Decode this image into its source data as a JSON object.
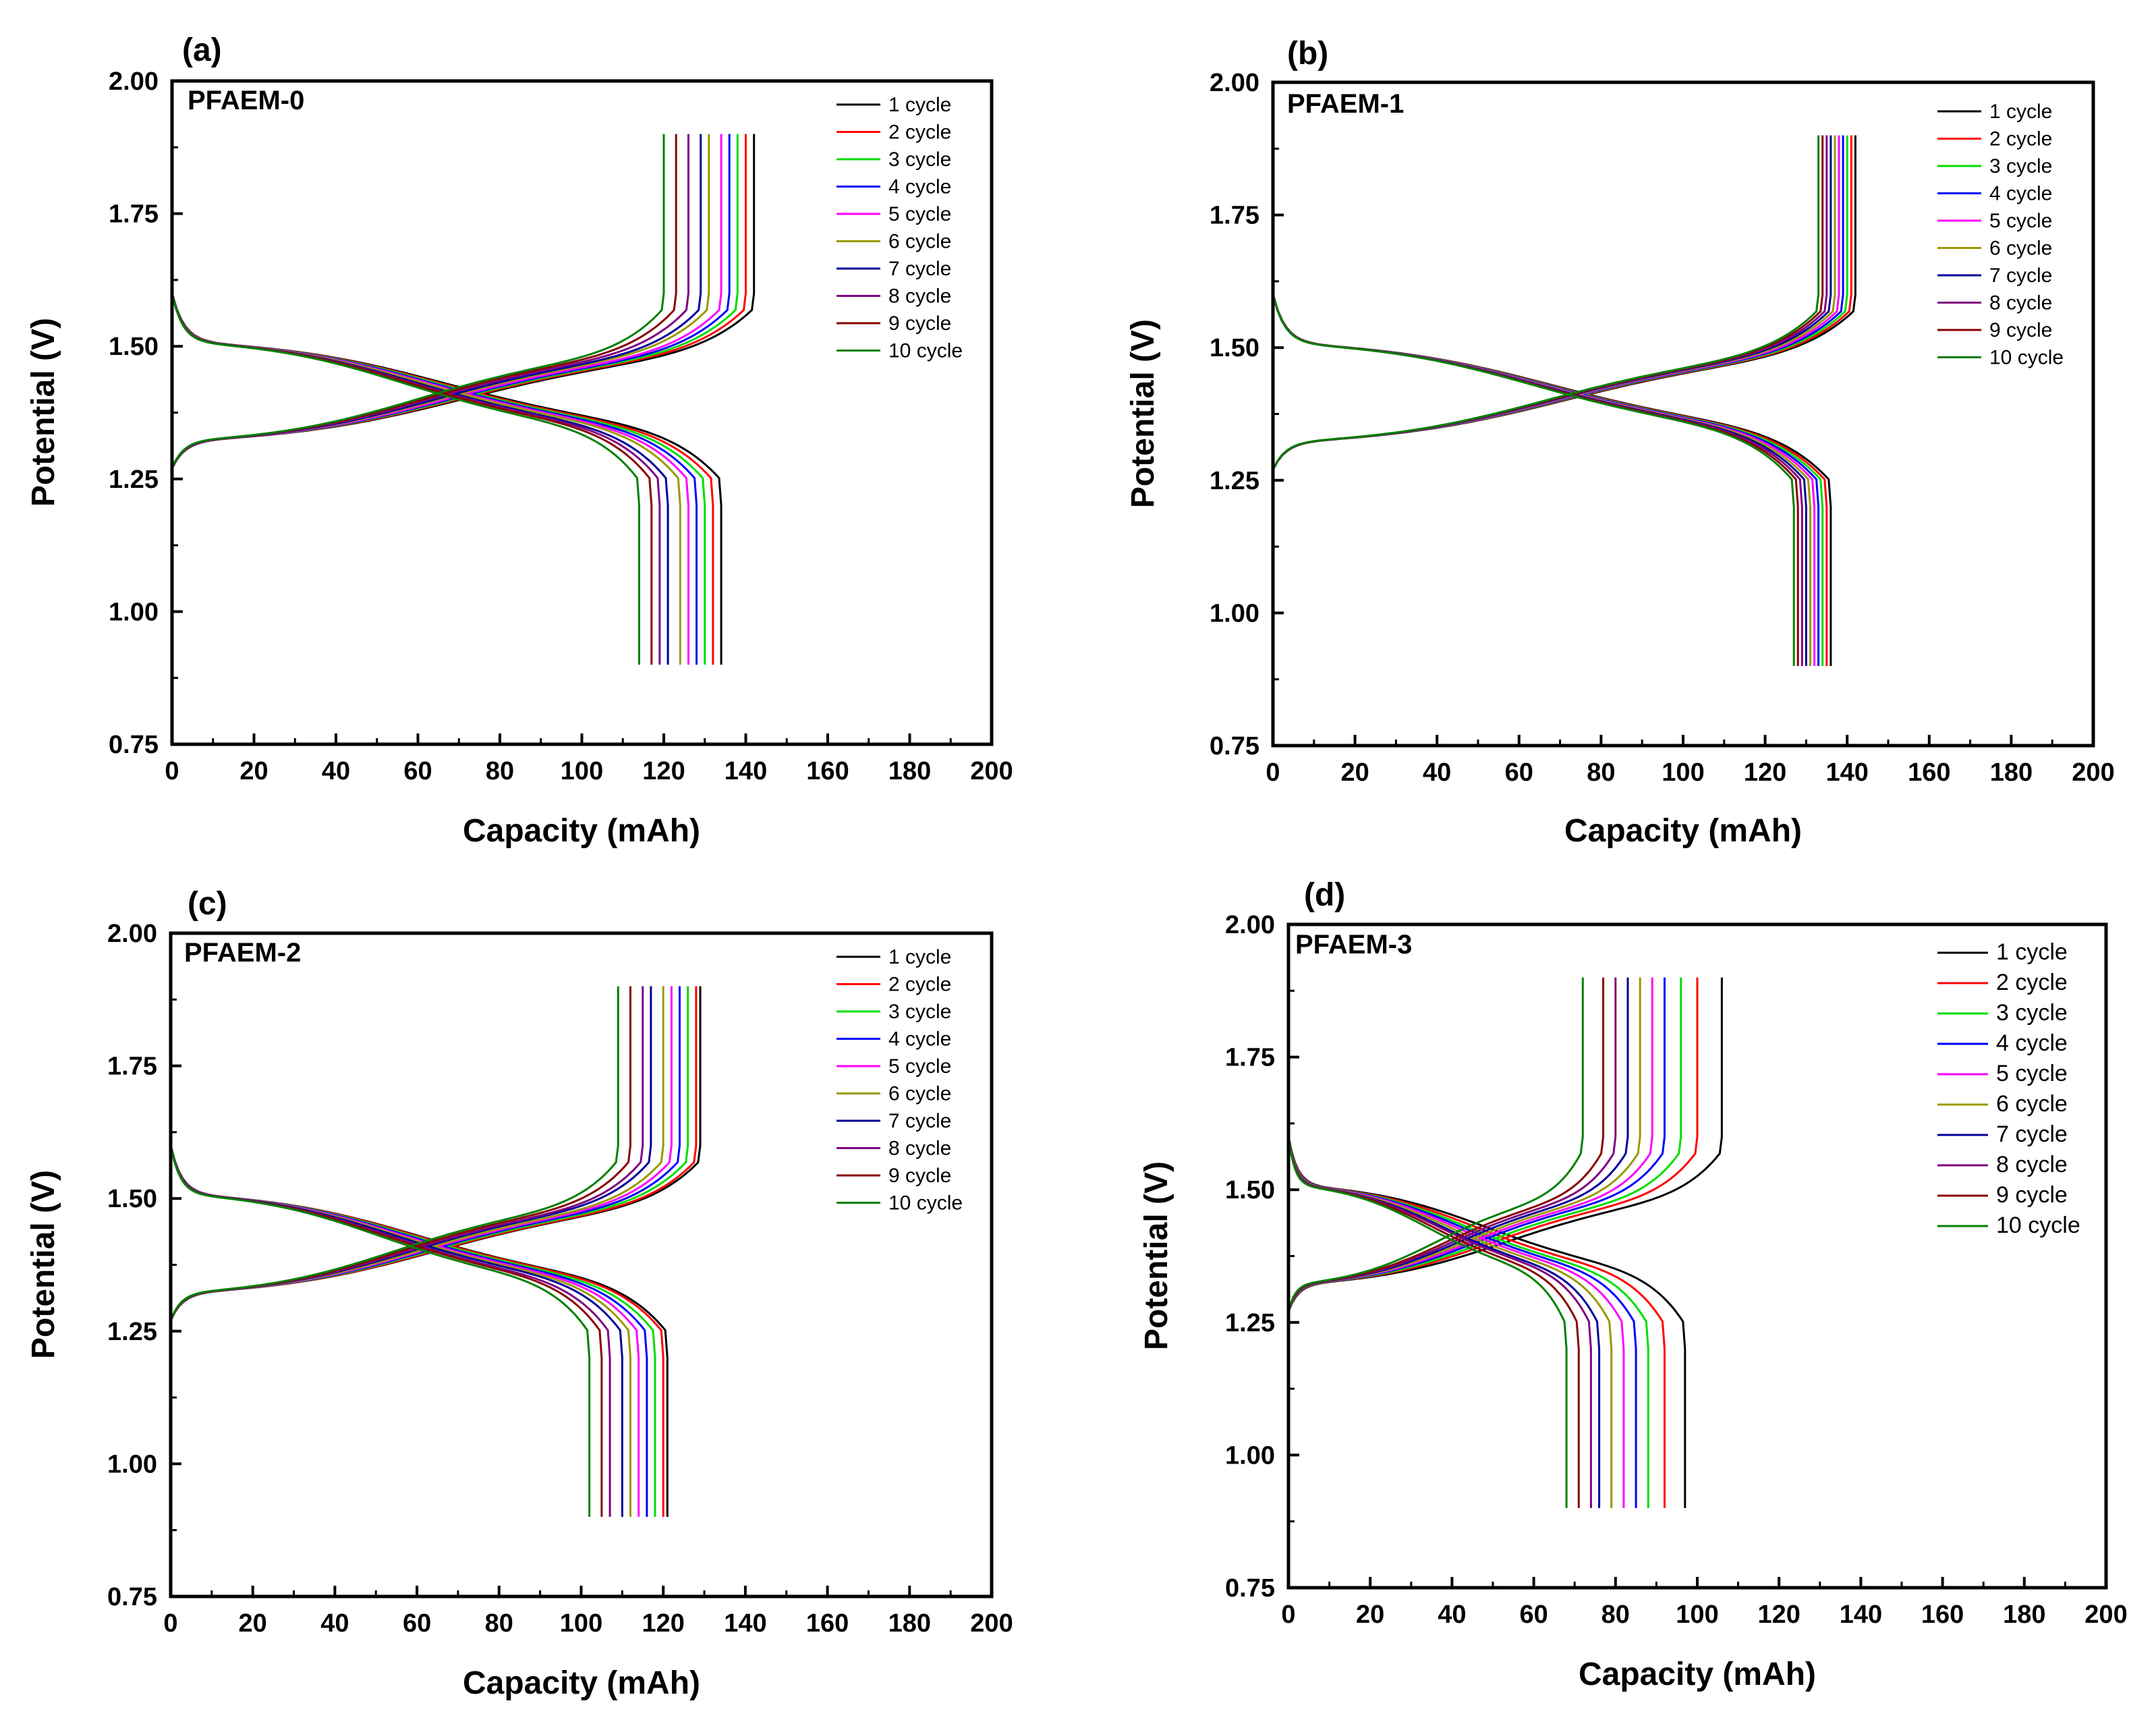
{
  "figure": {
    "legend_entries": [
      "1 cycle",
      "2 cycle",
      "3 cycle",
      "4 cycle",
      "5 cycle",
      "6 cycle",
      "7 cycle",
      "8 cycle",
      "9 cycle",
      "10 cycle"
    ],
    "series_colors": [
      "#000000",
      "#ff0000",
      "#00dd00",
      "#0000ff",
      "#ff00ff",
      "#999900",
      "#000099",
      "#800080",
      "#880000",
      "#008000"
    ]
  },
  "chart_data": [
    {
      "type": "line",
      "panel_label": "(a)",
      "sample": "PFAEM-0",
      "xlabel": "Capacity (mAh)",
      "ylabel": "Potential (V)",
      "xlim": [
        0,
        200
      ],
      "ylim": [
        0.75,
        2.0
      ],
      "x_ticks": [
        "0",
        "20",
        "40",
        "60",
        "80",
        "100",
        "120",
        "140",
        "160",
        "180",
        "200"
      ],
      "y_ticks": [
        "0.75",
        "1.00",
        "1.25",
        "1.50",
        "1.75",
        "2.00"
      ],
      "legend_position": "top-right",
      "charge_end_capacity": [
        142,
        140,
        138,
        136,
        134,
        131,
        129,
        126,
        123,
        120
      ],
      "charge_end_voltage": 1.9,
      "discharge_end_capacity": [
        134,
        132,
        130,
        128,
        126,
        124,
        121,
        119,
        117,
        114
      ],
      "discharge_end_voltage": 0.9
    },
    {
      "type": "line",
      "panel_label": "(b)",
      "sample": "PFAEM-1",
      "xlabel": "Capacity (mAh)",
      "ylabel": "Potential (V)",
      "xlim": [
        0,
        200
      ],
      "ylim": [
        0.75,
        2.0
      ],
      "x_ticks": [
        "0",
        "20",
        "40",
        "60",
        "80",
        "100",
        "120",
        "140",
        "160",
        "180",
        "200"
      ],
      "y_ticks": [
        "0.75",
        "1.00",
        "1.25",
        "1.50",
        "1.75",
        "2.00"
      ],
      "legend_position": "top-right",
      "charge_end_capacity": [
        142,
        141,
        140,
        139,
        138,
        137,
        136,
        135,
        134,
        133
      ],
      "charge_end_voltage": 1.9,
      "discharge_end_capacity": [
        136,
        135,
        134,
        133,
        132,
        131,
        130,
        129,
        128,
        127
      ],
      "discharge_end_voltage": 0.9
    },
    {
      "type": "line",
      "panel_label": "(c)",
      "sample": "PFAEM-2",
      "xlabel": "Capacity (mAh)",
      "ylabel": "Potential (V)",
      "xlim": [
        0,
        200
      ],
      "ylim": [
        0.75,
        2.0
      ],
      "x_ticks": [
        "0",
        "20",
        "40",
        "60",
        "80",
        "100",
        "120",
        "140",
        "160",
        "180",
        "200"
      ],
      "y_ticks": [
        "0.75",
        "1.00",
        "1.25",
        "1.50",
        "1.75",
        "2.00"
      ],
      "legend_position": "top-right",
      "charge_end_capacity": [
        129,
        128,
        126,
        124,
        122,
        120,
        117,
        115,
        112,
        109
      ],
      "charge_end_voltage": 1.9,
      "discharge_end_capacity": [
        121,
        120,
        118,
        116,
        114,
        112,
        110,
        107,
        105,
        102
      ],
      "discharge_end_voltage": 0.9
    },
    {
      "type": "line",
      "panel_label": "(d)",
      "sample": "PFAEM-3",
      "xlabel": "Capacity (mAh)",
      "ylabel": "Potential (V)",
      "xlim": [
        0,
        200
      ],
      "ylim": [
        0.75,
        2.0
      ],
      "x_ticks": [
        "0",
        "20",
        "40",
        "60",
        "80",
        "100",
        "120",
        "140",
        "160",
        "180",
        "200"
      ],
      "y_ticks": [
        "0.75",
        "1.00",
        "1.25",
        "1.50",
        "1.75",
        "2.00"
      ],
      "legend_position": "top-right",
      "charge_end_capacity": [
        106,
        100,
        96,
        92,
        89,
        86,
        83,
        80,
        77,
        72
      ],
      "charge_end_voltage": 1.9,
      "discharge_end_capacity": [
        97,
        92,
        88,
        85,
        82,
        79,
        76,
        74,
        71,
        68
      ],
      "discharge_end_voltage": 0.9
    }
  ]
}
